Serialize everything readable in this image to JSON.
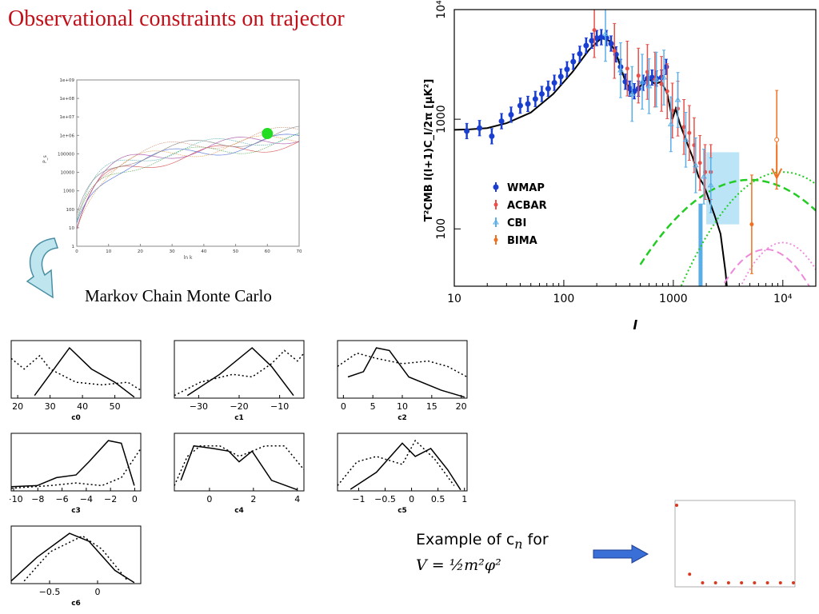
{
  "slide": {
    "title": "Observational constraints on trajector",
    "mcmc_label": "Markov Chain Monte Carlo",
    "example_line1": "Example of c",
    "example_line1_sub": "n",
    "example_line1_tail": " for",
    "example_line2": "V = ½m²φ²"
  },
  "arrow_colors": {
    "curved_arrow": "#9fd6e4",
    "right_arrow": "#3b6fd8"
  },
  "chart_data": [
    {
      "id": "pk-trajectories",
      "type": "line",
      "xlabel": "ln k",
      "ylabel": "P_s",
      "x_ticks": [
        "0",
        "10",
        "20",
        "30",
        "40",
        "50",
        "60",
        "70"
      ],
      "y_ticks": [
        "1",
        "10",
        "100",
        "1000",
        "10000",
        "100000",
        "1e+06",
        "1e+07",
        "1e+08",
        "1e+09"
      ],
      "xlim": [
        0,
        70
      ],
      "ylim_log10": [
        0,
        9
      ],
      "marker": {
        "x": 60,
        "y_log10": 6.1,
        "color": "#22dd22"
      }
    },
    {
      "id": "cmb-spectrum",
      "type": "scatter",
      "xscale": "log",
      "yscale": "log",
      "xlabel": "l",
      "ylabel": "T²CMB l(l+1)C_l/2π [μK²]",
      "x_ticks": [
        "10",
        "100",
        "1000",
        "10⁴"
      ],
      "y_ticks": [
        "100",
        "1000",
        "10⁴"
      ],
      "xlim": [
        10,
        20000
      ],
      "ylim": [
        30,
        10000
      ],
      "legend": [
        {
          "name": "WMAP",
          "color": "#1a3fd0"
        },
        {
          "name": "ACBAR",
          "color": "#e8504a"
        },
        {
          "name": "CBI",
          "color": "#5aaee8"
        },
        {
          "name": "BIMA",
          "color": "#ee7020"
        }
      ],
      "series": [
        {
          "name": "WMAP",
          "color": "#1a3fd0",
          "points": [
            [
              13,
              780
            ],
            [
              17,
              830
            ],
            [
              22,
              700
            ],
            [
              27,
              960
            ],
            [
              33,
              1100
            ],
            [
              40,
              1330
            ],
            [
              47,
              1380
            ],
            [
              55,
              1530
            ],
            [
              63,
              1700
            ],
            [
              72,
              1900
            ],
            [
              82,
              2150
            ],
            [
              94,
              2450
            ],
            [
              107,
              2850
            ],
            [
              122,
              3350
            ],
            [
              140,
              3950
            ],
            [
              160,
              4700
            ],
            [
              180,
              5200
            ],
            [
              200,
              5500
            ],
            [
              220,
              5600
            ],
            [
              245,
              5500
            ],
            [
              270,
              4900
            ],
            [
              300,
              3900
            ],
            [
              330,
              3000
            ],
            [
              365,
              2200
            ],
            [
              400,
              1900
            ],
            [
              440,
              1800
            ],
            [
              480,
              1900
            ],
            [
              530,
              2150
            ],
            [
              580,
              2350
            ],
            [
              640,
              2400
            ],
            [
              700,
              2350
            ],
            [
              780,
              2400
            ],
            [
              860,
              3000
            ]
          ]
        },
        {
          "name": "ACBAR",
          "color": "#e8504a",
          "points": [
            [
              190,
              6500
            ],
            [
              290,
              4200
            ],
            [
              380,
              2900
            ],
            [
              480,
              2500
            ],
            [
              580,
              2700
            ],
            [
              680,
              2300
            ],
            [
              780,
              2100
            ],
            [
              880,
              1800
            ],
            [
              980,
              1200
            ],
            [
              1100,
              1250
            ],
            [
              1250,
              850
            ],
            [
              1400,
              750
            ],
            [
              1550,
              580
            ],
            [
              1750,
              400
            ],
            [
              1950,
              330
            ],
            [
              2200,
              330
            ]
          ]
        },
        {
          "name": "CBI",
          "color": "#5aaee8",
          "points": [
            [
              240,
              6000
            ],
            [
              330,
              2800
            ],
            [
              420,
              1700
            ],
            [
              520,
              2200
            ],
            [
              600,
              2000
            ],
            [
              700,
              2300
            ],
            [
              820,
              2400
            ],
            [
              950,
              900
            ],
            [
              1100,
              1500
            ],
            [
              1300,
              650
            ],
            [
              1600,
              380
            ],
            [
              1900,
              300
            ],
            [
              2200,
              250
            ]
          ]
        },
        {
          "name": "BIMA",
          "color": "#ee7020",
          "points": [
            [
              5200,
              110
            ],
            [
              8800,
              650
            ]
          ]
        }
      ]
    },
    {
      "id": "c0",
      "type": "line",
      "xlabel": "c0",
      "x_ticks": [
        "20",
        "30",
        "40",
        "50"
      ]
    },
    {
      "id": "c1",
      "type": "line",
      "xlabel": "c1",
      "x_ticks": [
        "−30",
        "−20",
        "−10"
      ]
    },
    {
      "id": "c2",
      "type": "line",
      "xlabel": "c2",
      "x_ticks": [
        "0",
        "5",
        "10",
        "15",
        "20"
      ]
    },
    {
      "id": "c3",
      "type": "line",
      "xlabel": "c3",
      "x_ticks": [
        "−10",
        "−8",
        "−6",
        "−4",
        "−2",
        "0"
      ]
    },
    {
      "id": "c4",
      "type": "line",
      "xlabel": "c4",
      "x_ticks": [
        "0",
        "2",
        "4"
      ]
    },
    {
      "id": "c5",
      "type": "line",
      "xlabel": "c5",
      "x_ticks": [
        "−1",
        "−0.5",
        "0",
        "0.5",
        "1"
      ]
    },
    {
      "id": "c6",
      "type": "line",
      "xlabel": "c6",
      "x_ticks": [
        "−0.5",
        "0"
      ]
    },
    {
      "id": "cn-example",
      "type": "scatter",
      "color": "#d63b1f",
      "values": [
        1.0,
        0.12,
        0.01,
        0.01,
        0.01,
        0.01,
        0.01,
        0.01,
        0.01,
        0.01
      ]
    }
  ]
}
